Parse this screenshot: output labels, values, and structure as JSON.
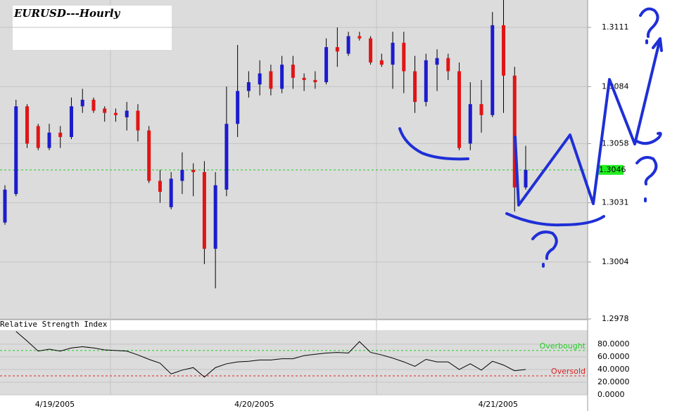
{
  "chart_data": {
    "type": "candlestick",
    "title": "EURUSD---Hourly",
    "categories": [
      null,
      null,
      null,
      null,
      "4/19/2005",
      null,
      null,
      null,
      null,
      null,
      null,
      null,
      null,
      null,
      null,
      null,
      null,
      null,
      null,
      null,
      null,
      null,
      "4/20/2005",
      null,
      null,
      null,
      null,
      null,
      null,
      null,
      null,
      null,
      null,
      null,
      null,
      null,
      null,
      null,
      null,
      null,
      null,
      null,
      null,
      null,
      "4/21/2005",
      null,
      null,
      null
    ],
    "open": [
      1.3022,
      1.3035,
      1.3075,
      1.3066,
      1.3056,
      1.3063,
      1.3061,
      1.3075,
      1.3078,
      1.3074,
      1.3072,
      1.307,
      1.3073,
      1.3064,
      1.3041,
      1.3029,
      1.3041,
      1.3046,
      1.3045,
      1.301,
      1.3037,
      1.3067,
      1.3082,
      1.3085,
      1.3091,
      1.3083,
      1.3094,
      1.3088,
      1.3087,
      1.3086,
      1.3102,
      1.3099,
      1.3107,
      1.3106,
      1.3096,
      1.3094,
      1.3104,
      1.3091,
      1.3077,
      1.3094,
      1.3097,
      1.3091,
      1.3058,
      1.3076,
      1.3071,
      1.3112,
      1.3089,
      1.3038
    ],
    "high": [
      1.3039,
      1.3078,
      1.3076,
      1.3067,
      1.3067,
      1.3066,
      1.3079,
      1.3083,
      1.3079,
      1.3075,
      1.3074,
      1.3077,
      1.3076,
      1.3066,
      1.3046,
      1.3045,
      1.3054,
      1.3049,
      1.305,
      1.3045,
      1.3084,
      1.3103,
      1.3091,
      1.3096,
      1.3094,
      1.3098,
      1.3098,
      1.309,
      1.3091,
      1.3106,
      1.3111,
      1.3109,
      1.3109,
      1.3107,
      1.3099,
      1.3109,
      1.3109,
      1.3098,
      1.3099,
      1.3101,
      1.3099,
      1.3095,
      1.3086,
      1.3087,
      1.3118,
      1.3124,
      1.3093,
      1.3057
    ],
    "low": [
      1.3021,
      1.3034,
      1.3056,
      1.3055,
      1.3055,
      1.3056,
      1.306,
      1.3072,
      1.3072,
      1.3068,
      1.3068,
      1.3064,
      1.3059,
      1.304,
      1.3031,
      1.3028,
      1.3035,
      1.3034,
      1.3003,
      1.2992,
      1.3034,
      1.3061,
      1.3079,
      1.308,
      1.308,
      1.3081,
      1.3083,
      1.3082,
      1.3083,
      1.3085,
      1.3093,
      1.3098,
      1.3105,
      1.3094,
      1.3093,
      1.3083,
      1.3081,
      1.3072,
      1.3075,
      1.3082,
      1.3087,
      1.3055,
      1.3055,
      1.3063,
      1.307,
      1.3072,
      1.3027,
      1.3037
    ],
    "close": [
      1.3037,
      1.3075,
      1.3058,
      1.3056,
      1.3063,
      1.3061,
      1.3075,
      1.3078,
      1.3073,
      1.3072,
      1.3071,
      1.3073,
      1.3064,
      1.3041,
      1.3036,
      1.3042,
      1.3046,
      1.3045,
      1.301,
      1.3039,
      1.3067,
      1.3082,
      1.3086,
      1.309,
      1.3083,
      1.3094,
      1.3088,
      1.3087,
      1.3086,
      1.3102,
      1.31,
      1.3107,
      1.3106,
      1.3095,
      1.3094,
      1.3104,
      1.3091,
      1.3077,
      1.3096,
      1.3097,
      1.3091,
      1.3056,
      1.3076,
      1.3071,
      1.3112,
      1.3089,
      1.3038,
      1.3046
    ],
    "up_color": "#1c1ccc",
    "down_color": "#e01515",
    "ylim": [
      1.2978,
      1.31235
    ],
    "yticks": [
      1.2978,
      1.3004,
      1.3031,
      1.3058,
      1.3084,
      1.3111
    ],
    "grid": true,
    "last_price": 1.3046,
    "rsi": {
      "title": "Relative Strength Index",
      "values": [
        null,
        100,
        85,
        69,
        72,
        69,
        74,
        76,
        74,
        71,
        70,
        69,
        63,
        56,
        50,
        33,
        39,
        43,
        28,
        43,
        49,
        52,
        53,
        55,
        55,
        57,
        57,
        62,
        64,
        66,
        67,
        66,
        84,
        67,
        63,
        58,
        52,
        45,
        56,
        52,
        52,
        40,
        49,
        39,
        53,
        47,
        38,
        40
      ],
      "ylim": [
        0,
        102
      ],
      "yticks": [
        {
          "value": 0,
          "label": "0.0000"
        },
        {
          "value": 20,
          "label": "20.0000"
        },
        {
          "value": 40,
          "label": "40.0000"
        },
        {
          "value": 60,
          "label": "60.0000"
        },
        {
          "value": 80,
          "label": "80.0000"
        }
      ],
      "overbought": {
        "label": "Overbought",
        "value": 70
      },
      "oversold": {
        "label": "Oversold",
        "value": 30
      }
    }
  }
}
